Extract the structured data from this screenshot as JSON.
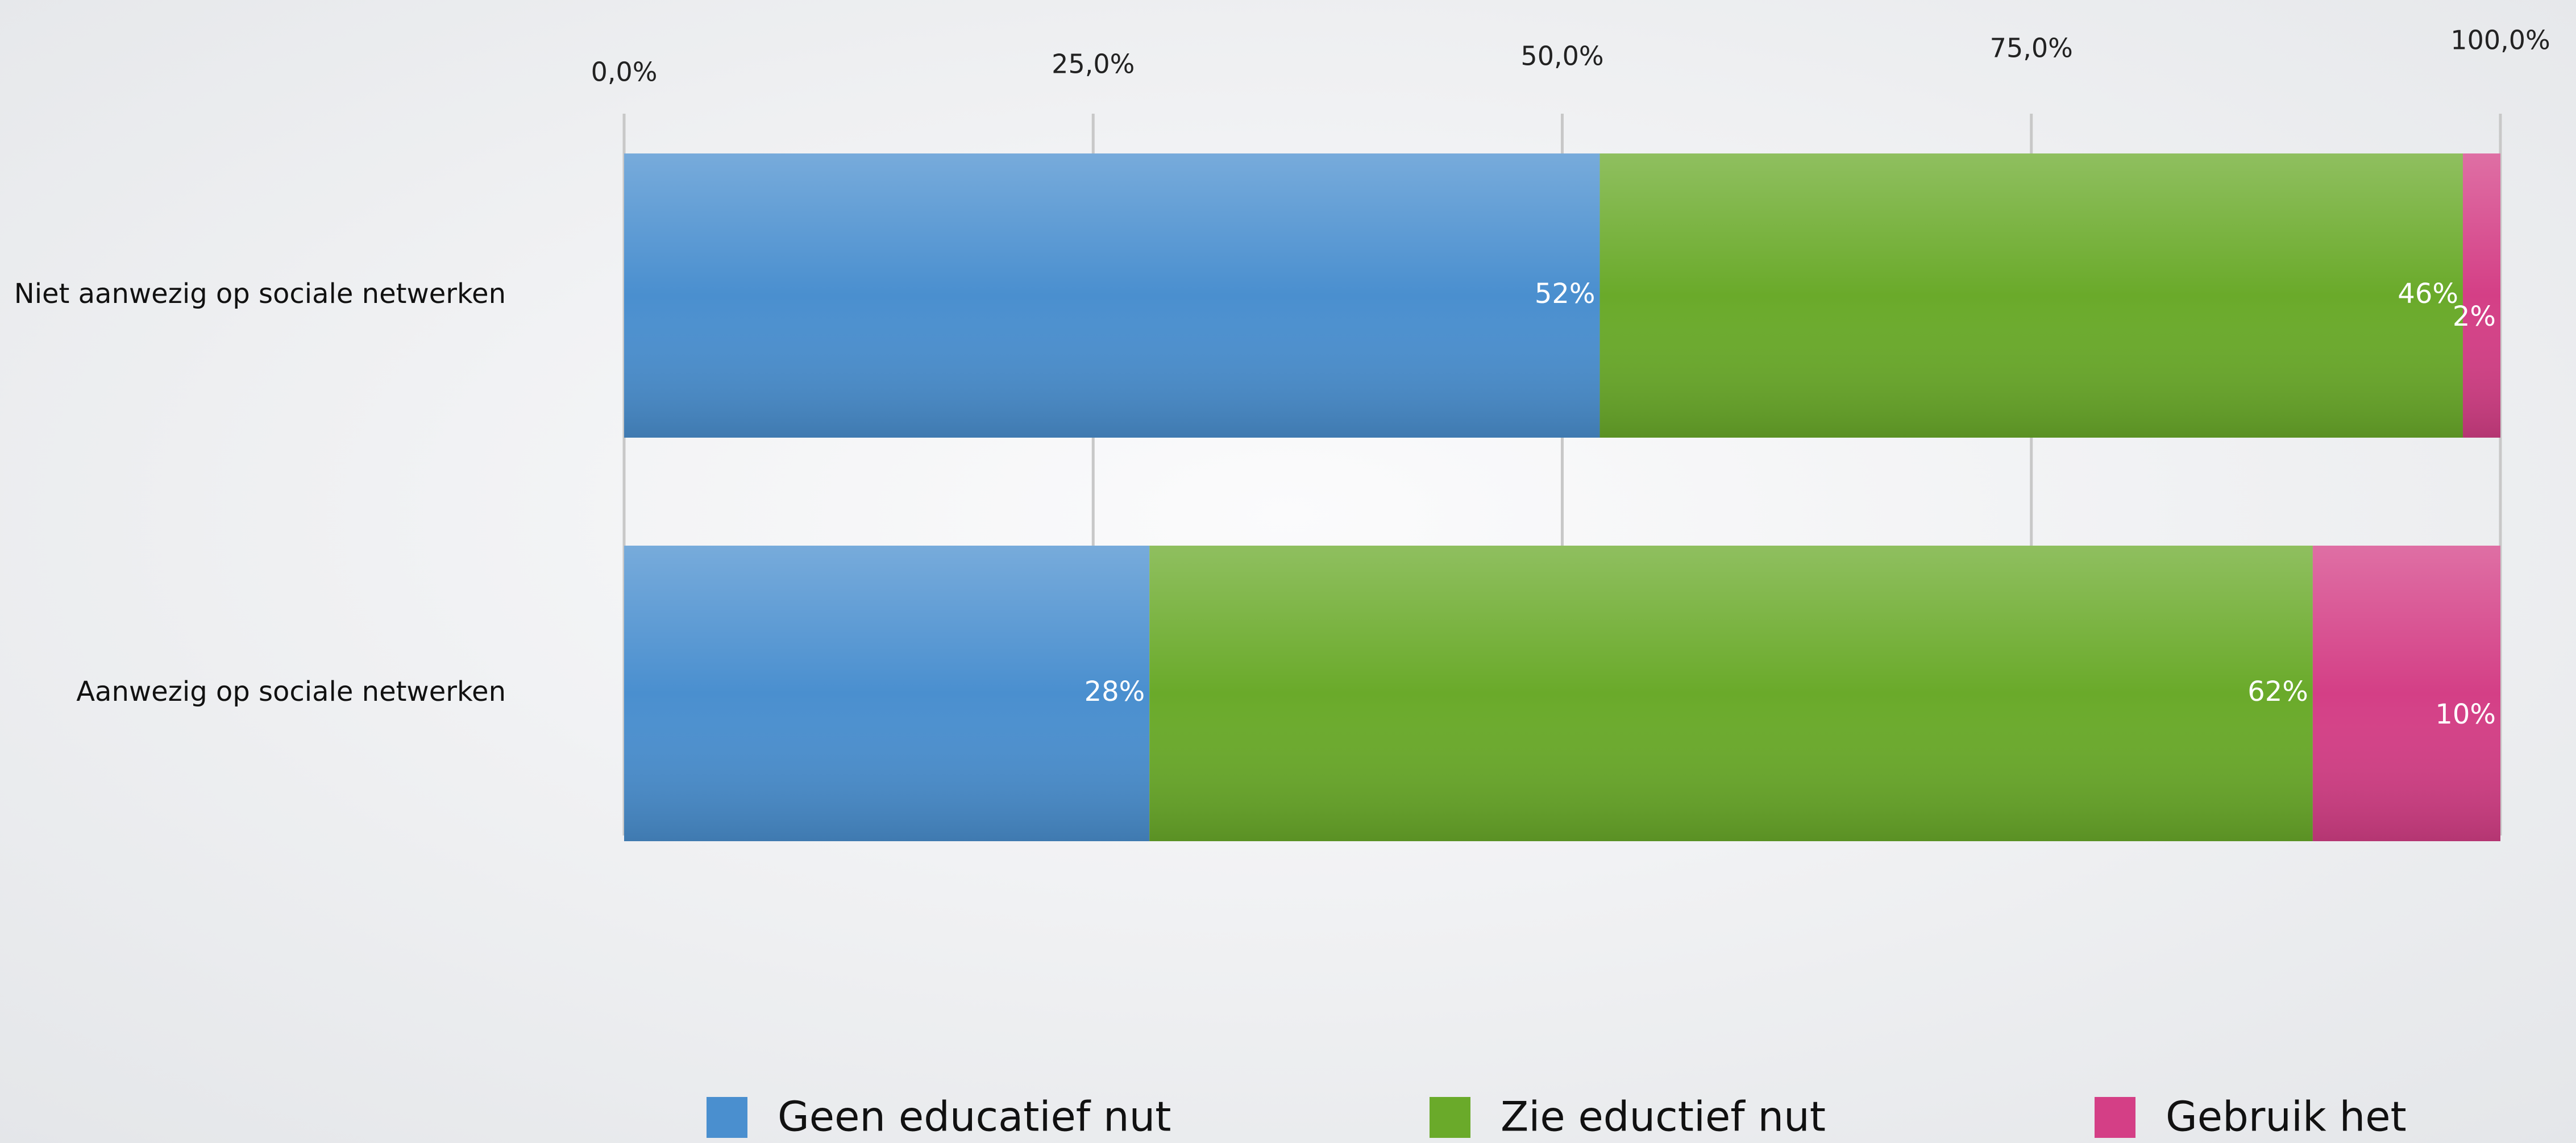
{
  "chart_data": {
    "type": "stacked_barh",
    "categories": [
      "Niet aanwezig op sociale netwerken",
      "Aanwezig op sociale netwerken"
    ],
    "series": [
      {
        "name": "Geen educatief nut",
        "color": "#4a8fcf",
        "values": [
          52,
          28
        ],
        "value_labels": [
          "52%",
          "28%"
        ]
      },
      {
        "name": "Zie eductief nut",
        "color": "#6aaa2a",
        "values": [
          46,
          62
        ],
        "value_labels": [
          "46%",
          "62%"
        ]
      },
      {
        "name": "Gebruik het",
        "color": "#d43f86",
        "values": [
          2,
          10
        ],
        "value_labels": [
          "2%",
          "10%"
        ]
      }
    ],
    "xlim": [
      0,
      100
    ],
    "xticks": [
      {
        "value": 0,
        "label": "0,0%"
      },
      {
        "value": 25,
        "label": "25,0%"
      },
      {
        "value": 50,
        "label": "50,0%"
      },
      {
        "value": 75,
        "label": "75,0%"
      },
      {
        "value": 100,
        "label": "100,0%"
      }
    ],
    "grid": true,
    "legend": "bottom"
  }
}
